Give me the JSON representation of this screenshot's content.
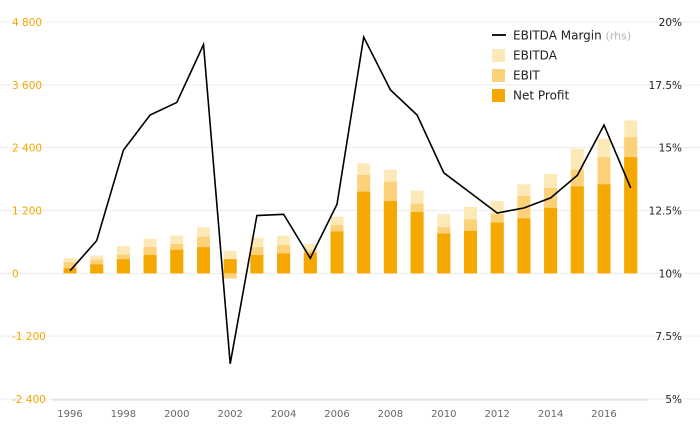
{
  "chart_data": {
    "type": "bar",
    "x": [
      "1996",
      "1997",
      "1998",
      "1999",
      "2000",
      "2001",
      "2002",
      "2003",
      "2004",
      "2005",
      "2006",
      "2007",
      "2008",
      "2009",
      "2010",
      "2011",
      "2012",
      "2013",
      "2014",
      "2015",
      "2016",
      "2017"
    ],
    "x_tick_labels": [
      "1996",
      "1998",
      "2000",
      "2002",
      "2004",
      "2006",
      "2008",
      "2010",
      "2012",
      "2014",
      "2016"
    ],
    "y_left": {
      "ticks": [
        -2400,
        -1200,
        0,
        1200,
        2400,
        3600,
        4800
      ],
      "tick_labels": [
        "-2 400",
        "-1 200",
        "0",
        "1 200",
        "2 400",
        "3 600",
        "4 800"
      ],
      "lim": [
        -2400,
        4800
      ]
    },
    "y_right": {
      "ticks": [
        5,
        7.5,
        10,
        12.5,
        15,
        17.5,
        20
      ],
      "tick_labels": [
        "5%",
        "7.5%",
        "10%",
        "12.5%",
        "15%",
        "17.5%",
        "20%"
      ],
      "lim": [
        5,
        20
      ]
    },
    "series": [
      {
        "name": "EBITDA",
        "kind": "bar",
        "color": "#fde9b8",
        "values": [
          290,
          340,
          520,
          660,
          720,
          880,
          430,
          680,
          720,
          560,
          1080,
          2100,
          1980,
          1580,
          1130,
          1270,
          1380,
          1700,
          1900,
          2380,
          2570,
          2920
        ]
      },
      {
        "name": "EBIT",
        "kind": "bar",
        "color": "#fbd27a",
        "values": [
          210,
          260,
          360,
          500,
          560,
          700,
          -100,
          500,
          540,
          440,
          920,
          1880,
          1750,
          1330,
          880,
          1030,
          1130,
          1480,
          1630,
          1980,
          2220,
          2600
        ]
      },
      {
        "name": "Net Profit",
        "kind": "bar",
        "color": "#f5a800",
        "values": [
          100,
          170,
          270,
          350,
          450,
          500,
          270,
          350,
          380,
          390,
          800,
          1560,
          1380,
          1170,
          760,
          810,
          970,
          1050,
          1250,
          1660,
          1700,
          2220
        ]
      },
      {
        "name": "EBITDA Margin",
        "name_suffix": "(rhs)",
        "kind": "line",
        "axis": "right",
        "color": "#000000",
        "values": [
          10.1,
          11.3,
          14.9,
          16.3,
          16.8,
          19.1,
          6.4,
          12.3,
          12.35,
          10.6,
          12.75,
          19.4,
          17.3,
          16.3,
          14.0,
          13.2,
          12.4,
          12.6,
          13.0,
          13.9,
          15.9,
          13.4
        ]
      }
    ],
    "legend_position": "top-right",
    "grid": true
  },
  "colors": {
    "left_tick": "#f5a800",
    "right_tick": "#222222",
    "x_tick": "#666666",
    "grid": "#ececec",
    "legend_text": "#222222",
    "legend_suffix": "#b5b5b5"
  }
}
